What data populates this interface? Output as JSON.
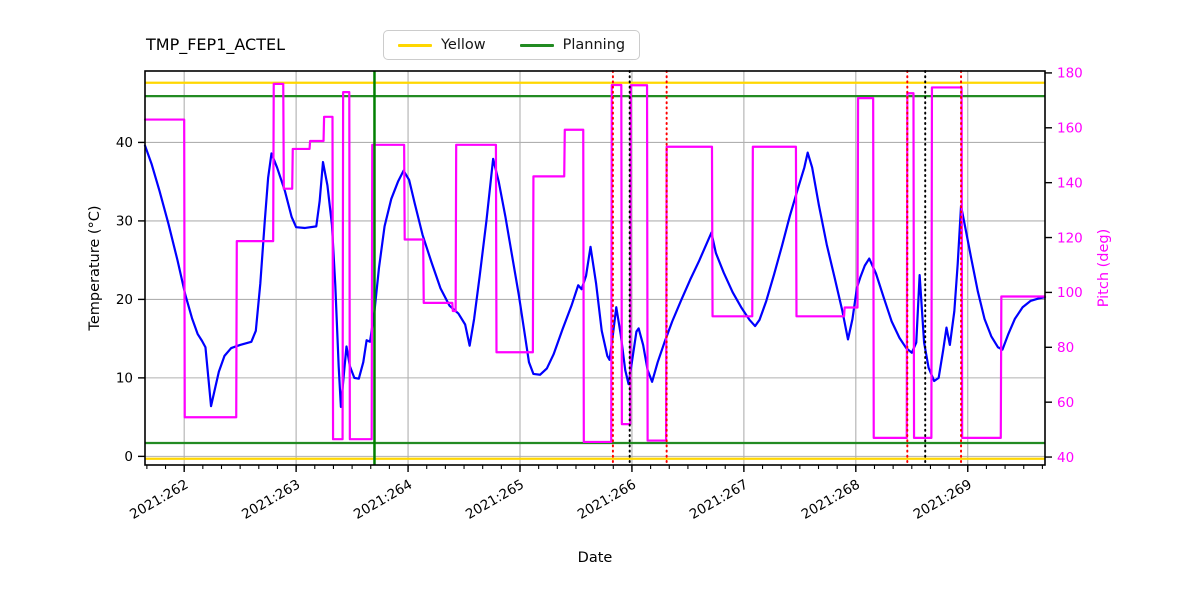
{
  "chart_data": {
    "type": "line",
    "title": "TMP_FEP1_ACTEL",
    "xlabel": "Date",
    "ylabel_left": "Temperature (°C)",
    "ylabel_right": "Pitch (deg)",
    "grid": true,
    "legend": {
      "position": "top-center",
      "entries": [
        {
          "label": "Yellow",
          "color": "#FFD700"
        },
        {
          "label": "Planning",
          "color": "#228B22"
        }
      ]
    },
    "x_axis": {
      "range": [
        261.65,
        269.69
      ],
      "major_ticks": [
        262,
        263,
        264,
        265,
        266,
        267,
        268,
        269
      ],
      "tick_labels": [
        "2021:262",
        "2021:263",
        "2021:264",
        "2021:265",
        "2021:266",
        "2021:267",
        "2021:268",
        "2021:269"
      ],
      "minor_tick_step_days": 0.1666667,
      "label_rotation_deg": 30
    },
    "y_axis_left": {
      "range": [
        -1.1,
        49.1
      ],
      "ticks": [
        0,
        10,
        20,
        30,
        40
      ],
      "tick_labels": [
        "0",
        "10",
        "20",
        "30",
        "40"
      ],
      "color": "#000000"
    },
    "y_axis_right": {
      "range": [
        37.1,
        180.7
      ],
      "ticks": [
        40,
        60,
        80,
        100,
        120,
        140,
        160,
        180
      ],
      "tick_labels": [
        "40",
        "60",
        "80",
        "100",
        "120",
        "140",
        "160",
        "180"
      ],
      "color": "#FF00FF"
    },
    "limit_lines": [
      {
        "name": "yellow-high",
        "axis": "left",
        "value": 47.6,
        "color": "#FFD700"
      },
      {
        "name": "yellow-low",
        "axis": "left",
        "value": -0.3,
        "color": "#FFD700"
      },
      {
        "name": "planning-high",
        "axis": "left",
        "value": 45.9,
        "color": "#228B22"
      },
      {
        "name": "planning-low",
        "axis": "left",
        "value": 1.7,
        "color": "#228B22"
      }
    ],
    "event_lines": [
      {
        "x": 263.7,
        "color": "#008000",
        "style": "solid",
        "width": 2.5
      },
      {
        "x": 265.83,
        "color": "#FF0000",
        "style": "dotted",
        "width": 2
      },
      {
        "x": 265.98,
        "color": "#000000",
        "style": "dotted",
        "width": 2
      },
      {
        "x": 266.31,
        "color": "#FF0000",
        "style": "dotted",
        "width": 2
      },
      {
        "x": 268.46,
        "color": "#FF0000",
        "style": "dotted",
        "width": 2
      },
      {
        "x": 268.62,
        "color": "#000000",
        "style": "dotted",
        "width": 2
      },
      {
        "x": 268.94,
        "color": "#FF0000",
        "style": "dotted",
        "width": 2
      }
    ],
    "series": [
      {
        "name": "temperature",
        "axis": "left",
        "color": "#0000FF",
        "width": 2.2,
        "points": [
          [
            261.65,
            39.6
          ],
          [
            261.71,
            37.2
          ],
          [
            261.78,
            33.8
          ],
          [
            261.86,
            29.6
          ],
          [
            261.94,
            25.0
          ],
          [
            262.01,
            20.6
          ],
          [
            262.07,
            17.6
          ],
          [
            262.12,
            15.6
          ],
          [
            262.16,
            14.7
          ],
          [
            262.19,
            13.9
          ],
          [
            262.24,
            6.4
          ],
          [
            262.27,
            8.3
          ],
          [
            262.31,
            10.8
          ],
          [
            262.36,
            12.8
          ],
          [
            262.42,
            13.8
          ],
          [
            262.5,
            14.2
          ],
          [
            262.6,
            14.6
          ],
          [
            262.64,
            16.0
          ],
          [
            262.68,
            22.0
          ],
          [
            262.72,
            30.0
          ],
          [
            262.75,
            35.5
          ],
          [
            262.78,
            38.6
          ],
          [
            262.83,
            36.8
          ],
          [
            262.9,
            33.8
          ],
          [
            262.96,
            30.5
          ],
          [
            263.0,
            29.2
          ],
          [
            263.08,
            29.1
          ],
          [
            263.18,
            29.3
          ],
          [
            263.21,
            32.5
          ],
          [
            263.24,
            37.5
          ],
          [
            263.28,
            34.5
          ],
          [
            263.32,
            29.5
          ],
          [
            263.35,
            21.8
          ],
          [
            263.38,
            11.5
          ],
          [
            263.4,
            6.3
          ],
          [
            263.43,
            11.0
          ],
          [
            263.45,
            14.0
          ],
          [
            263.48,
            11.5
          ],
          [
            263.52,
            10.0
          ],
          [
            263.56,
            9.9
          ],
          [
            263.6,
            12.0
          ],
          [
            263.63,
            14.8
          ],
          [
            263.66,
            14.6
          ],
          [
            263.7,
            18.5
          ],
          [
            263.74,
            24.0
          ],
          [
            263.79,
            29.3
          ],
          [
            263.85,
            32.8
          ],
          [
            263.91,
            35.0
          ],
          [
            263.96,
            36.4
          ],
          [
            264.01,
            35.2
          ],
          [
            264.06,
            32.2
          ],
          [
            264.13,
            28.2
          ],
          [
            264.21,
            24.7
          ],
          [
            264.29,
            21.4
          ],
          [
            264.37,
            19.2
          ],
          [
            264.45,
            18.2
          ],
          [
            264.51,
            16.8
          ],
          [
            264.55,
            14.1
          ],
          [
            264.59,
            17.5
          ],
          [
            264.64,
            23.0
          ],
          [
            264.7,
            30.0
          ],
          [
            264.76,
            37.9
          ],
          [
            264.81,
            35.0
          ],
          [
            264.87,
            30.5
          ],
          [
            264.93,
            25.5
          ],
          [
            264.99,
            20.5
          ],
          [
            265.04,
            15.8
          ],
          [
            265.08,
            12.0
          ],
          [
            265.12,
            10.5
          ],
          [
            265.18,
            10.4
          ],
          [
            265.24,
            11.2
          ],
          [
            265.3,
            13.0
          ],
          [
            265.38,
            16.2
          ],
          [
            265.46,
            19.2
          ],
          [
            265.52,
            21.8
          ],
          [
            265.55,
            21.3
          ],
          [
            265.59,
            23.0
          ],
          [
            265.63,
            26.7
          ],
          [
            265.68,
            22.0
          ],
          [
            265.73,
            16.0
          ],
          [
            265.78,
            12.8
          ],
          [
            265.8,
            12.3
          ],
          [
            265.83,
            15.5
          ],
          [
            265.86,
            19.0
          ],
          [
            265.9,
            15.5
          ],
          [
            265.94,
            11.0
          ],
          [
            265.97,
            9.2
          ],
          [
            266.01,
            13.0
          ],
          [
            266.04,
            15.9
          ],
          [
            266.06,
            16.3
          ],
          [
            266.1,
            14.2
          ],
          [
            266.14,
            11.0
          ],
          [
            266.18,
            9.5
          ],
          [
            266.23,
            12.0
          ],
          [
            266.29,
            14.5
          ],
          [
            266.36,
            17.2
          ],
          [
            266.44,
            19.9
          ],
          [
            266.52,
            22.5
          ],
          [
            266.6,
            24.9
          ],
          [
            266.67,
            27.2
          ],
          [
            266.71,
            28.5
          ],
          [
            266.75,
            25.9
          ],
          [
            266.82,
            23.4
          ],
          [
            266.9,
            20.9
          ],
          [
            266.98,
            18.9
          ],
          [
            267.05,
            17.4
          ],
          [
            267.1,
            16.6
          ],
          [
            267.14,
            17.4
          ],
          [
            267.2,
            19.8
          ],
          [
            267.27,
            23.2
          ],
          [
            267.34,
            26.8
          ],
          [
            267.41,
            30.6
          ],
          [
            267.48,
            34.0
          ],
          [
            267.54,
            36.8
          ],
          [
            267.57,
            38.7
          ],
          [
            267.61,
            36.8
          ],
          [
            267.67,
            32.0
          ],
          [
            267.74,
            27.0
          ],
          [
            267.81,
            22.8
          ],
          [
            267.88,
            18.5
          ],
          [
            267.93,
            14.9
          ],
          [
            267.97,
            17.5
          ],
          [
            268.01,
            21.5
          ],
          [
            268.04,
            22.8
          ],
          [
            268.08,
            24.3
          ],
          [
            268.12,
            25.2
          ],
          [
            268.18,
            23.3
          ],
          [
            268.25,
            20.2
          ],
          [
            268.32,
            17.2
          ],
          [
            268.39,
            15.1
          ],
          [
            268.45,
            13.8
          ],
          [
            268.5,
            13.2
          ],
          [
            268.54,
            14.5
          ],
          [
            268.57,
            23.1
          ],
          [
            268.61,
            14.5
          ],
          [
            268.65,
            11.3
          ],
          [
            268.7,
            9.6
          ],
          [
            268.74,
            10.0
          ],
          [
            268.78,
            13.5
          ],
          [
            268.81,
            16.4
          ],
          [
            268.84,
            14.2
          ],
          [
            268.88,
            18.5
          ],
          [
            268.91,
            24.5
          ],
          [
            268.94,
            31.9
          ],
          [
            268.98,
            29.0
          ],
          [
            269.03,
            25.3
          ],
          [
            269.09,
            21.0
          ],
          [
            269.15,
            17.5
          ],
          [
            269.21,
            15.3
          ],
          [
            269.27,
            13.9
          ],
          [
            269.31,
            13.6
          ],
          [
            269.36,
            15.5
          ],
          [
            269.42,
            17.5
          ],
          [
            269.49,
            19.0
          ],
          [
            269.56,
            19.8
          ],
          [
            269.63,
            20.1
          ],
          [
            269.69,
            20.3
          ]
        ]
      },
      {
        "name": "pitch",
        "axis": "right",
        "color": "#FF00FF",
        "width": 2.2,
        "points": [
          [
            261.65,
            163
          ],
          [
            262.0,
            163
          ],
          [
            262.005,
            54.5
          ],
          [
            262.465,
            54.5
          ],
          [
            262.47,
            118.7
          ],
          [
            262.795,
            118.7
          ],
          [
            262.8,
            176
          ],
          [
            262.885,
            176
          ],
          [
            262.89,
            137.8
          ],
          [
            262.965,
            137.8
          ],
          [
            262.97,
            152.3
          ],
          [
            263.12,
            152.3
          ],
          [
            263.125,
            155.2
          ],
          [
            263.245,
            155.2
          ],
          [
            263.25,
            164
          ],
          [
            263.325,
            164
          ],
          [
            263.33,
            46.5
          ],
          [
            263.415,
            46.5
          ],
          [
            263.42,
            173
          ],
          [
            263.475,
            173
          ],
          [
            263.48,
            46.5
          ],
          [
            263.675,
            46.5
          ],
          [
            263.68,
            153.8
          ],
          [
            263.965,
            153.8
          ],
          [
            263.97,
            119.3
          ],
          [
            264.135,
            119.3
          ],
          [
            264.14,
            96.2
          ],
          [
            264.395,
            96.2
          ],
          [
            264.4,
            93.2
          ],
          [
            264.425,
            93.2
          ],
          [
            264.43,
            153.8
          ],
          [
            264.785,
            153.8
          ],
          [
            264.79,
            78.2
          ],
          [
            265.115,
            78.2
          ],
          [
            265.12,
            142.3
          ],
          [
            265.395,
            142.3
          ],
          [
            265.4,
            159.3
          ],
          [
            265.565,
            159.3
          ],
          [
            265.57,
            45.5
          ],
          [
            265.815,
            45.5
          ],
          [
            265.82,
            175.6
          ],
          [
            265.905,
            175.6
          ],
          [
            265.91,
            52
          ],
          [
            265.985,
            52
          ],
          [
            265.99,
            175.5
          ],
          [
            266.135,
            175.5
          ],
          [
            266.14,
            46
          ],
          [
            266.305,
            46
          ],
          [
            266.31,
            153.1
          ],
          [
            266.715,
            153.1
          ],
          [
            266.72,
            91.3
          ],
          [
            267.075,
            91.3
          ],
          [
            267.08,
            153.1
          ],
          [
            267.465,
            153.1
          ],
          [
            267.47,
            91.3
          ],
          [
            267.895,
            91.3
          ],
          [
            267.9,
            94.5
          ],
          [
            268.015,
            94.5
          ],
          [
            268.02,
            170.8
          ],
          [
            268.155,
            170.8
          ],
          [
            268.16,
            47
          ],
          [
            268.455,
            47
          ],
          [
            268.46,
            172.6
          ],
          [
            268.515,
            172.6
          ],
          [
            268.52,
            47
          ],
          [
            268.675,
            47
          ],
          [
            268.68,
            174.7
          ],
          [
            268.945,
            174.7
          ],
          [
            268.95,
            47
          ],
          [
            269.295,
            47
          ],
          [
            269.3,
            98.5
          ],
          [
            269.69,
            98.5
          ]
        ]
      }
    ]
  }
}
